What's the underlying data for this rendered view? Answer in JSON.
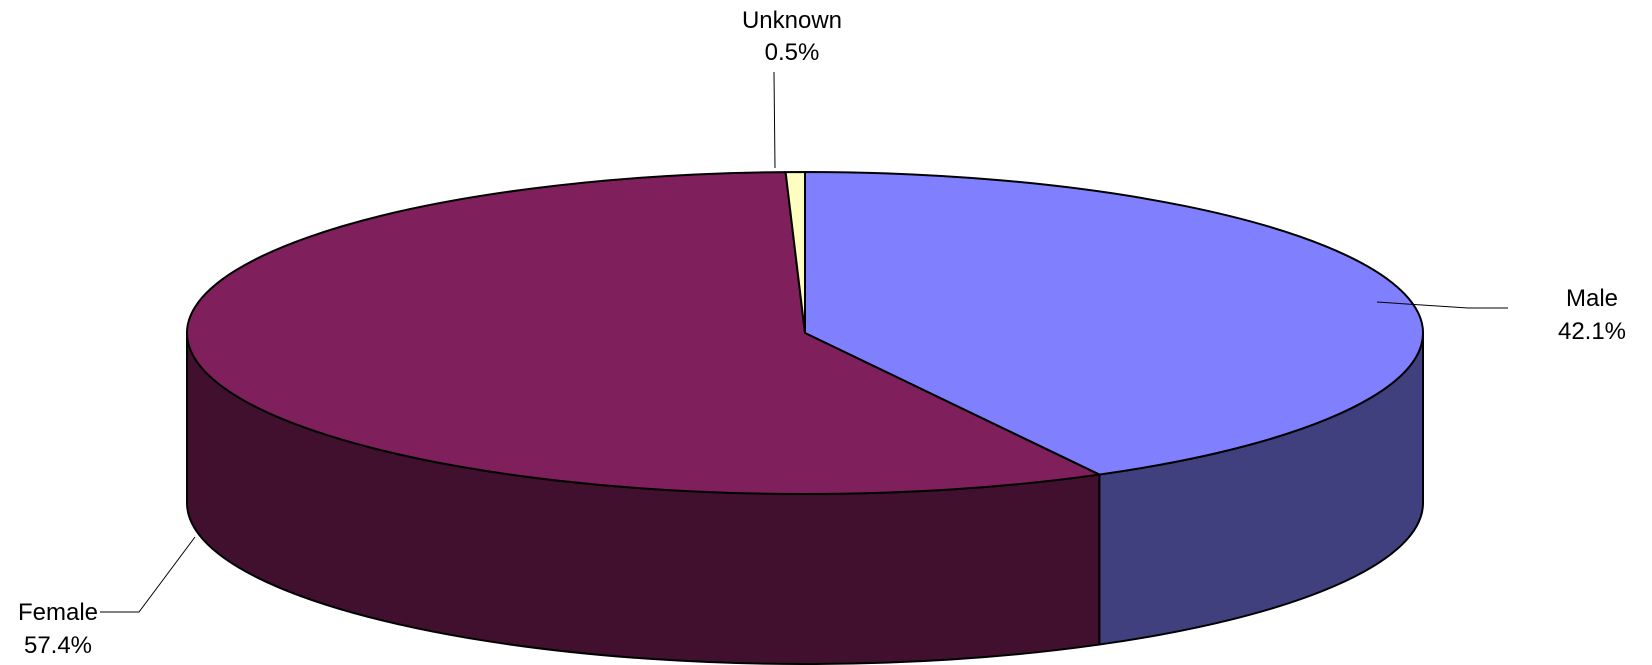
{
  "chart_data": {
    "type": "pie",
    "style": "3d",
    "slices": [
      {
        "name": "Male",
        "label": "42.1%",
        "value": 42.1,
        "color": "#8080ff",
        "side_color": "#40407f"
      },
      {
        "name": "Female",
        "label": "57.4%",
        "value": 57.4,
        "color": "#7f1f5b",
        "side_color": "#40102e"
      },
      {
        "name": "Unknown",
        "label": "0.5%",
        "value": 0.5,
        "color": "#ffffc0",
        "side_color": "#808060"
      }
    ],
    "title": "",
    "legend": "none"
  }
}
